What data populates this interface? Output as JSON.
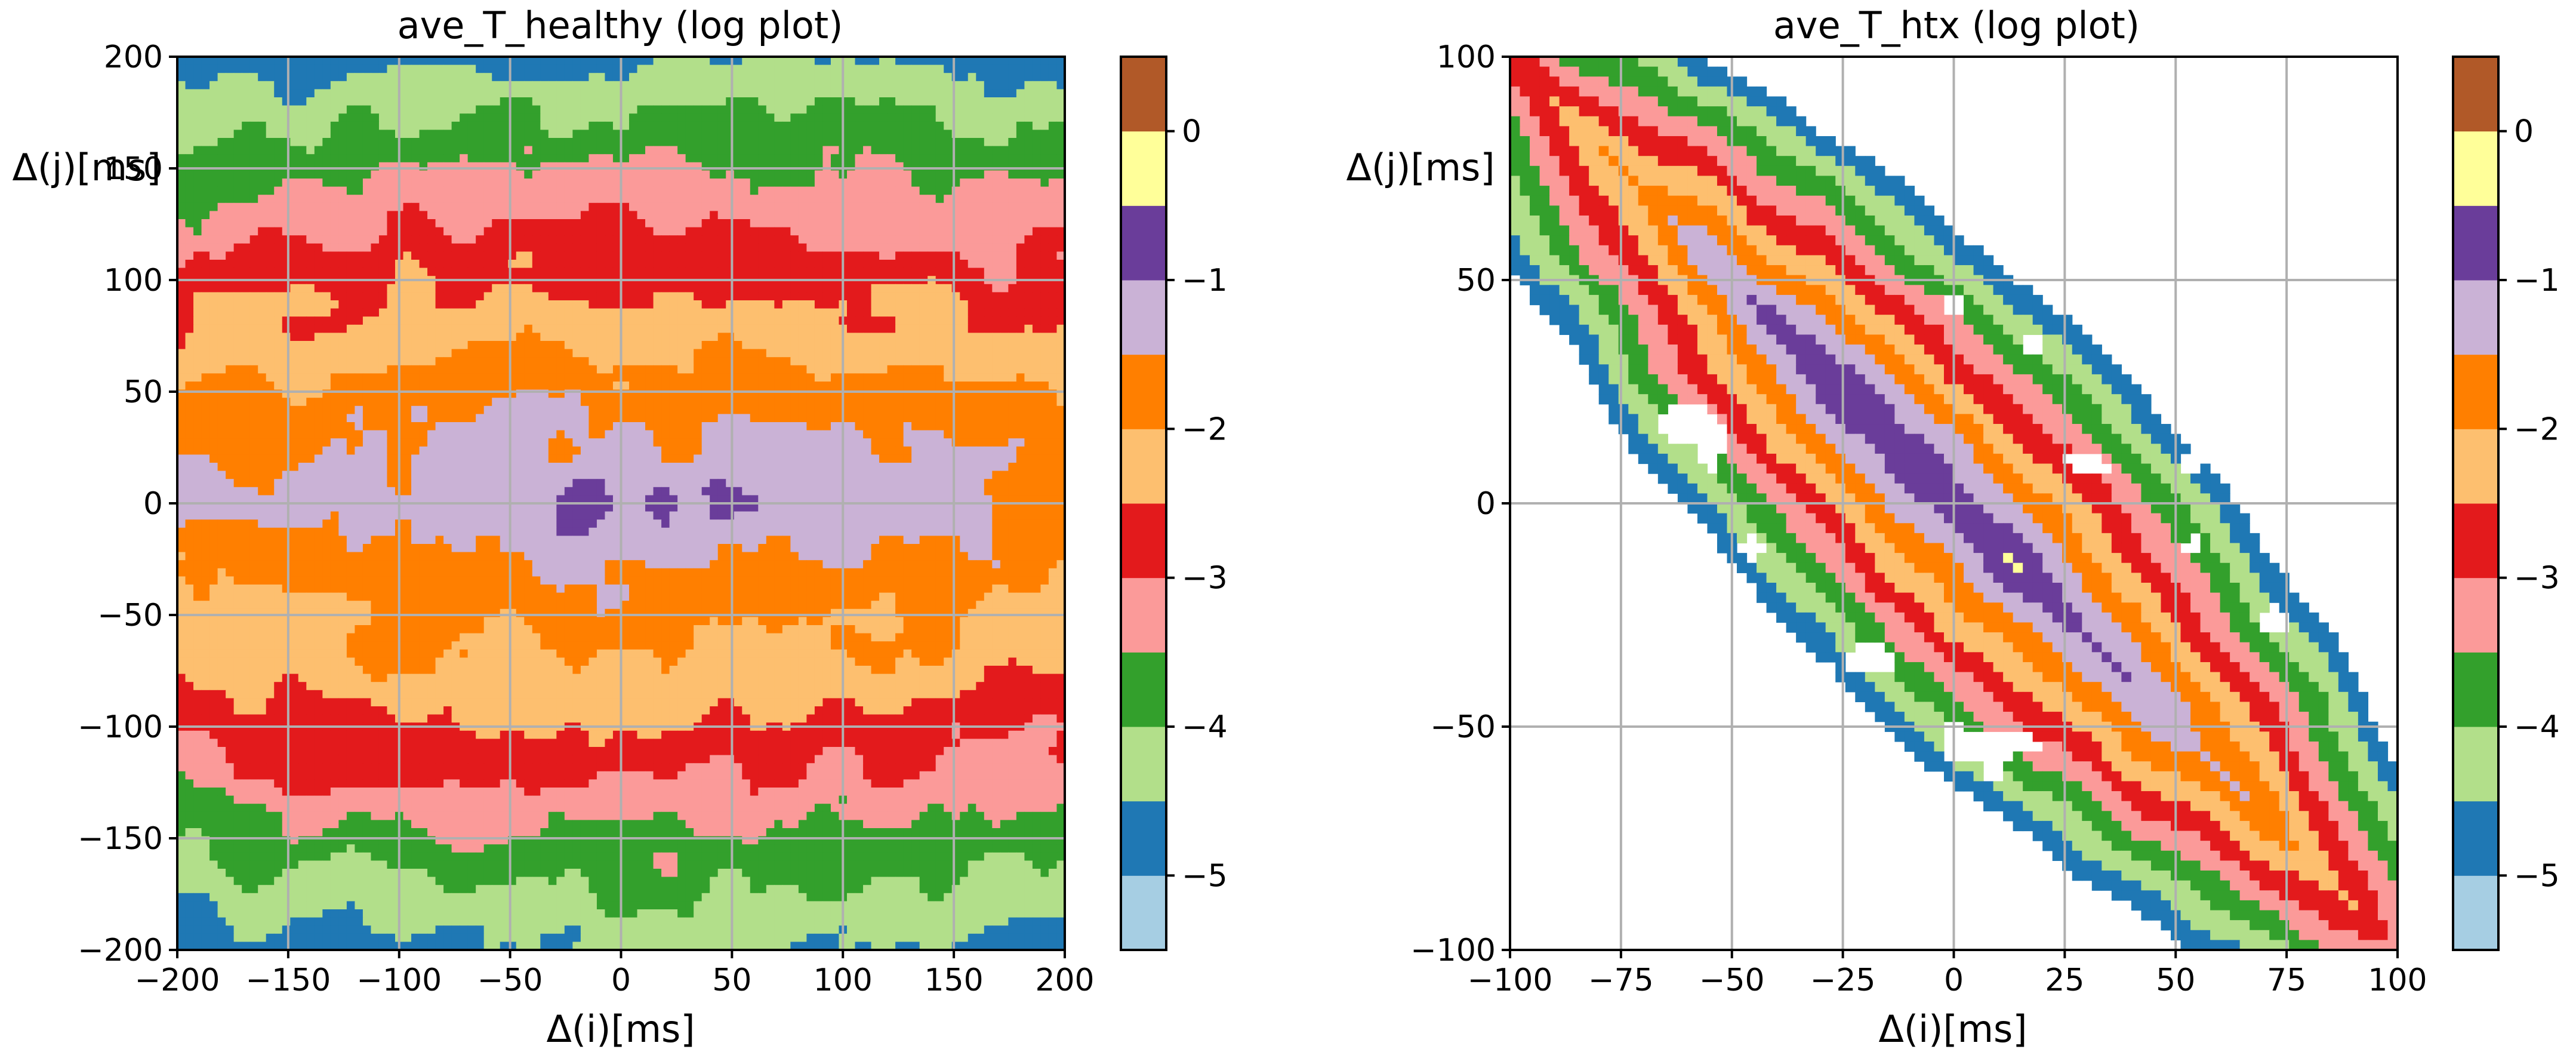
{
  "colors": {
    "levels": [
      "#a6cee3",
      "#1f78b4",
      "#b2df8a",
      "#33a02c",
      "#fb9a99",
      "#e31a1c",
      "#fdbf6f",
      "#ff7f00",
      "#cab2d6",
      "#6a3d9a",
      "#ffff99",
      "#b15928"
    ]
  },
  "chart_data": [
    {
      "type": "contour",
      "title": "ave_T_healthy  (log plot)",
      "xlabel": "Δ(i)[ms]",
      "ylabel": "Δ(j)[ms]",
      "xlim": [
        -200,
        200
      ],
      "ylim": [
        -200,
        200
      ],
      "xticks": [
        -200,
        -150,
        -100,
        -50,
        0,
        50,
        100,
        150,
        200
      ],
      "yticks": [
        -200,
        -150,
        -100,
        -50,
        0,
        50,
        100,
        150,
        200
      ],
      "xtick_labels": [
        "−200",
        "−150",
        "−100",
        "−50",
        "0",
        "50",
        "100",
        "150",
        "200"
      ],
      "ytick_labels": [
        "−200",
        "−150",
        "−100",
        "−50",
        "0",
        "50",
        "100",
        "150",
        "200"
      ],
      "grid": true,
      "colorbar": {
        "range": [
          -5.5,
          0.5
        ],
        "level_step": 0.5,
        "ticks": [
          0,
          -1,
          -2,
          -3,
          -4,
          -5
        ],
        "tick_labels": [
          "0",
          "−1",
          "−2",
          "−3",
          "−4",
          "−5"
        ]
      },
      "pattern": "horizontal bands symmetric about Δ(j)=0; peak ≈ −0.75 near origin, values falling toward ≈ −4.5 at |Δ(j)| = 200",
      "max_level": -0.75,
      "min_level": -4.75
    },
    {
      "type": "contour",
      "title": "ave_T_htx (log plot)",
      "xlabel": "Δ(i)[ms]",
      "ylabel": "Δ(j)[ms]",
      "xlim": [
        -100,
        100
      ],
      "ylim": [
        -100,
        100
      ],
      "xticks": [
        -100,
        -75,
        -50,
        -25,
        0,
        25,
        50,
        75,
        100
      ],
      "yticks": [
        -100,
        -50,
        0,
        50,
        100
      ],
      "xtick_labels": [
        "−100",
        "−75",
        "−50",
        "−25",
        "0",
        "25",
        "50",
        "75",
        "100"
      ],
      "ytick_labels": [
        "−100",
        "−50",
        "0",
        "50",
        "100"
      ],
      "grid": true,
      "colorbar": {
        "range": [
          -5.5,
          0.5
        ],
        "level_step": 0.5,
        "ticks": [
          0,
          -1,
          -2,
          -3,
          -4,
          -5
        ],
        "tick_labels": [
          "0",
          "−1",
          "−2",
          "−3",
          "−4",
          "−5"
        ]
      },
      "pattern": "diagonal band along Δ(j) = −Δ(i); peak ≈ −0.25 near (−5, −5), values falling to ≈ −5 away from the diagonal",
      "max_level": -0.25,
      "min_level": -5.25
    }
  ]
}
